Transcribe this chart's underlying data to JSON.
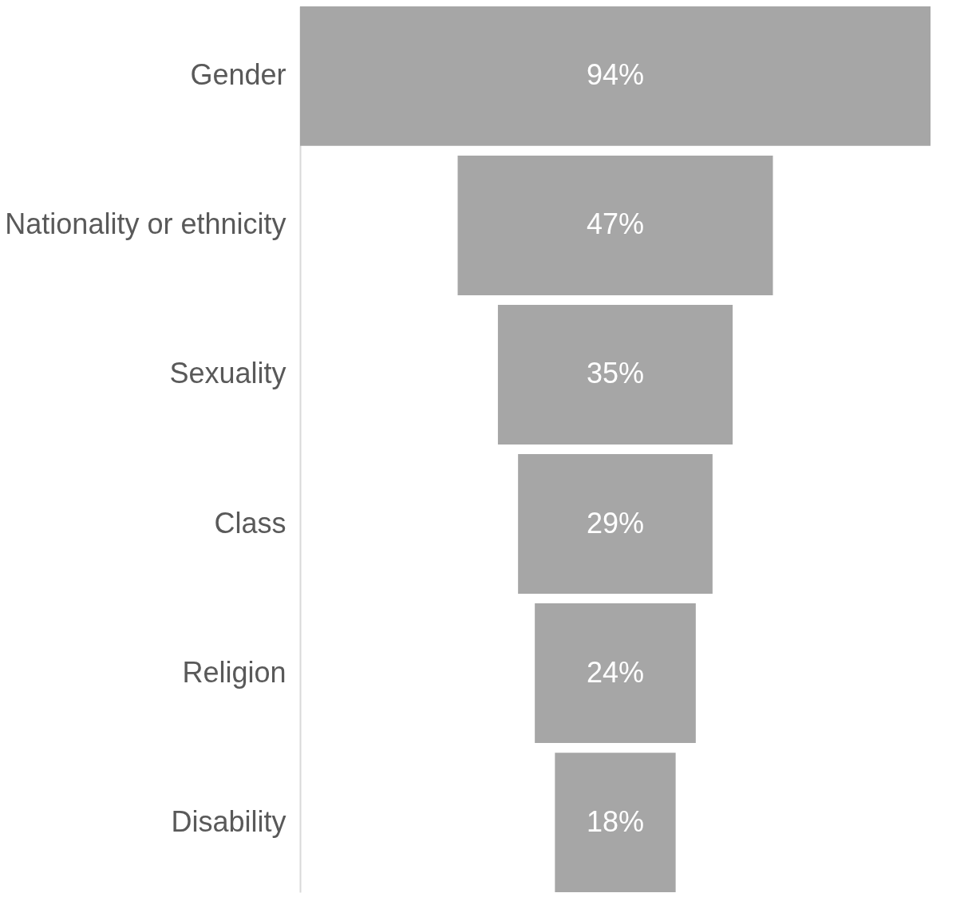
{
  "chart_data": {
    "type": "other",
    "categories": [
      "Gender",
      "Nationality or ethnicity",
      "Sexuality",
      "Class",
      "Religion",
      "Disability"
    ],
    "values": [
      94,
      47,
      35,
      29,
      24,
      18
    ],
    "value_labels": [
      "94%",
      "47%",
      "35%",
      "29%",
      "24%",
      "18%"
    ],
    "color": "#a6a6a6"
  }
}
